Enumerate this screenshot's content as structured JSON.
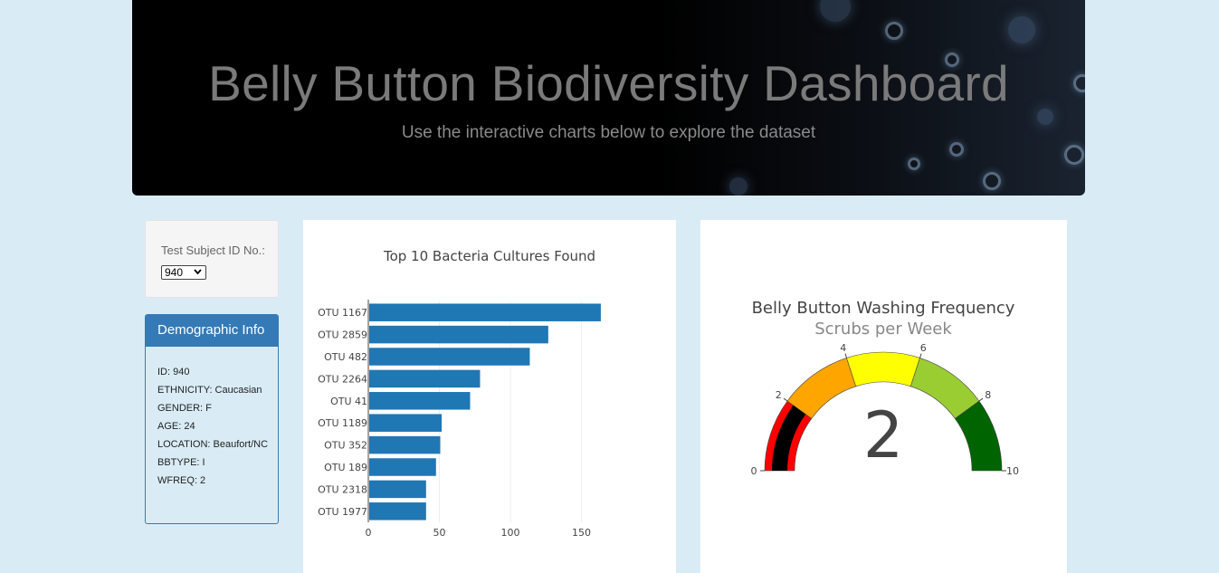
{
  "header": {
    "title": "Belly Button Biodiversity Dashboard",
    "subtitle": "Use the interactive charts below to explore the dataset"
  },
  "selector": {
    "label": "Test Subject ID No.:",
    "value": "940"
  },
  "demographics": {
    "heading": "Demographic Info",
    "rows": [
      "ID: 940",
      "ETHNICITY: Caucasian",
      "GENDER: F",
      "AGE: 24",
      "LOCATION: Beaufort/NC",
      "BBTYPE: I",
      "WFREQ: 2"
    ]
  },
  "chart_data": [
    {
      "type": "bar",
      "orientation": "horizontal",
      "title": "Top 10 Bacteria Cultures Found",
      "categories": [
        "OTU 1167",
        "OTU 2859",
        "OTU 482",
        "OTU 2264",
        "OTU 41",
        "OTU 1189",
        "OTU 352",
        "OTU 189",
        "OTU 2318",
        "OTU 1977"
      ],
      "values": [
        163,
        126,
        113,
        78,
        71,
        51,
        50,
        47,
        40,
        40
      ],
      "xticks": [
        "0",
        "50",
        "100",
        "150"
      ],
      "xlim": [
        0,
        165
      ],
      "grid": true,
      "color": "#1f77b4"
    },
    {
      "type": "gauge",
      "title": "Belly Button Washing Frequency",
      "subtitle": "Scrubs per Week",
      "value": 2,
      "range": [
        0,
        10
      ],
      "ticks": [
        "0",
        "2",
        "4",
        "6",
        "8",
        "10"
      ],
      "steps": [
        {
          "range": [
            0,
            2
          ],
          "color": "#ff0000"
        },
        {
          "range": [
            2,
            4
          ],
          "color": "#ffa500"
        },
        {
          "range": [
            4,
            6
          ],
          "color": "#ffff00"
        },
        {
          "range": [
            6,
            8
          ],
          "color": "#9acd32"
        },
        {
          "range": [
            8,
            10
          ],
          "color": "#006400"
        }
      ],
      "bar_color": "#000000"
    }
  ]
}
